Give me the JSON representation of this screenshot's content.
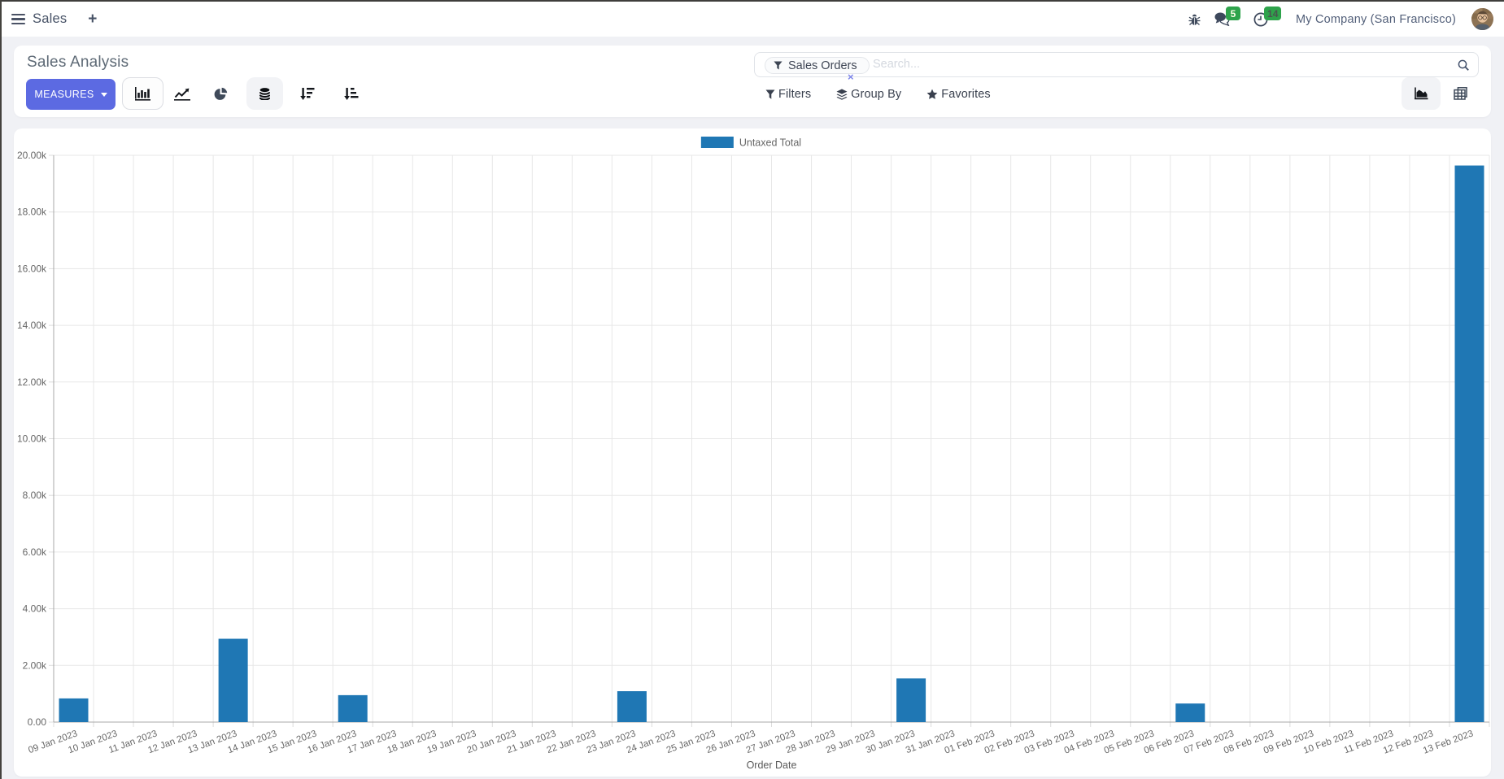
{
  "navbar": {
    "app_name": "Sales",
    "new_tab_label": "+",
    "systray": {
      "messages_count": "5",
      "activities_count": "14",
      "company": "My Company (San Francisco)"
    }
  },
  "control_panel": {
    "title": "Sales Analysis",
    "measures_label": "MEASURES",
    "search": {
      "facet_label": "Sales Orders",
      "facet_remove_label": "×",
      "placeholder": "Search...",
      "filters_label": "Filters",
      "group_by_label": "Group By",
      "favorites_label": "Favorites"
    }
  },
  "colors": {
    "accent": "#5c6ae2",
    "bar": "#1f77b4",
    "badge_green": "#2ea34b",
    "grid": "#e7e7e7",
    "axis_border": "#a8a8a8",
    "tick_label": "#666666"
  },
  "chart_data": {
    "type": "bar",
    "title": "",
    "xlabel": "Order Date",
    "ylabel": "",
    "legend": [
      "Untaxed Total"
    ],
    "legend_position": "top",
    "grid": true,
    "ylim": [
      0,
      20000
    ],
    "ytick_labels": [
      "0.00",
      "2.00k",
      "4.00k",
      "6.00k",
      "8.00k",
      "10.00k",
      "12.00k",
      "14.00k",
      "16.00k",
      "18.00k",
      "20.00k"
    ],
    "categories": [
      "09 Jan 2023",
      "10 Jan 2023",
      "11 Jan 2023",
      "12 Jan 2023",
      "13 Jan 2023",
      "14 Jan 2023",
      "15 Jan 2023",
      "16 Jan 2023",
      "17 Jan 2023",
      "18 Jan 2023",
      "19 Jan 2023",
      "20 Jan 2023",
      "21 Jan 2023",
      "22 Jan 2023",
      "23 Jan 2023",
      "24 Jan 2023",
      "25 Jan 2023",
      "26 Jan 2023",
      "27 Jan 2023",
      "28 Jan 2023",
      "29 Jan 2023",
      "30 Jan 2023",
      "31 Jan 2023",
      "01 Feb 2023",
      "02 Feb 2023",
      "03 Feb 2023",
      "04 Feb 2023",
      "05 Feb 2023",
      "06 Feb 2023",
      "07 Feb 2023",
      "08 Feb 2023",
      "09 Feb 2023",
      "10 Feb 2023",
      "11 Feb 2023",
      "12 Feb 2023",
      "13 Feb 2023"
    ],
    "series": [
      {
        "name": "Untaxed Total",
        "values": [
          835,
          0,
          0,
          0,
          2940,
          0,
          0,
          950,
          0,
          0,
          0,
          0,
          0,
          0,
          1090,
          0,
          0,
          0,
          0,
          0,
          0,
          1540,
          0,
          0,
          0,
          0,
          0,
          0,
          655,
          0,
          0,
          0,
          0,
          0,
          0,
          19640
        ]
      }
    ]
  }
}
